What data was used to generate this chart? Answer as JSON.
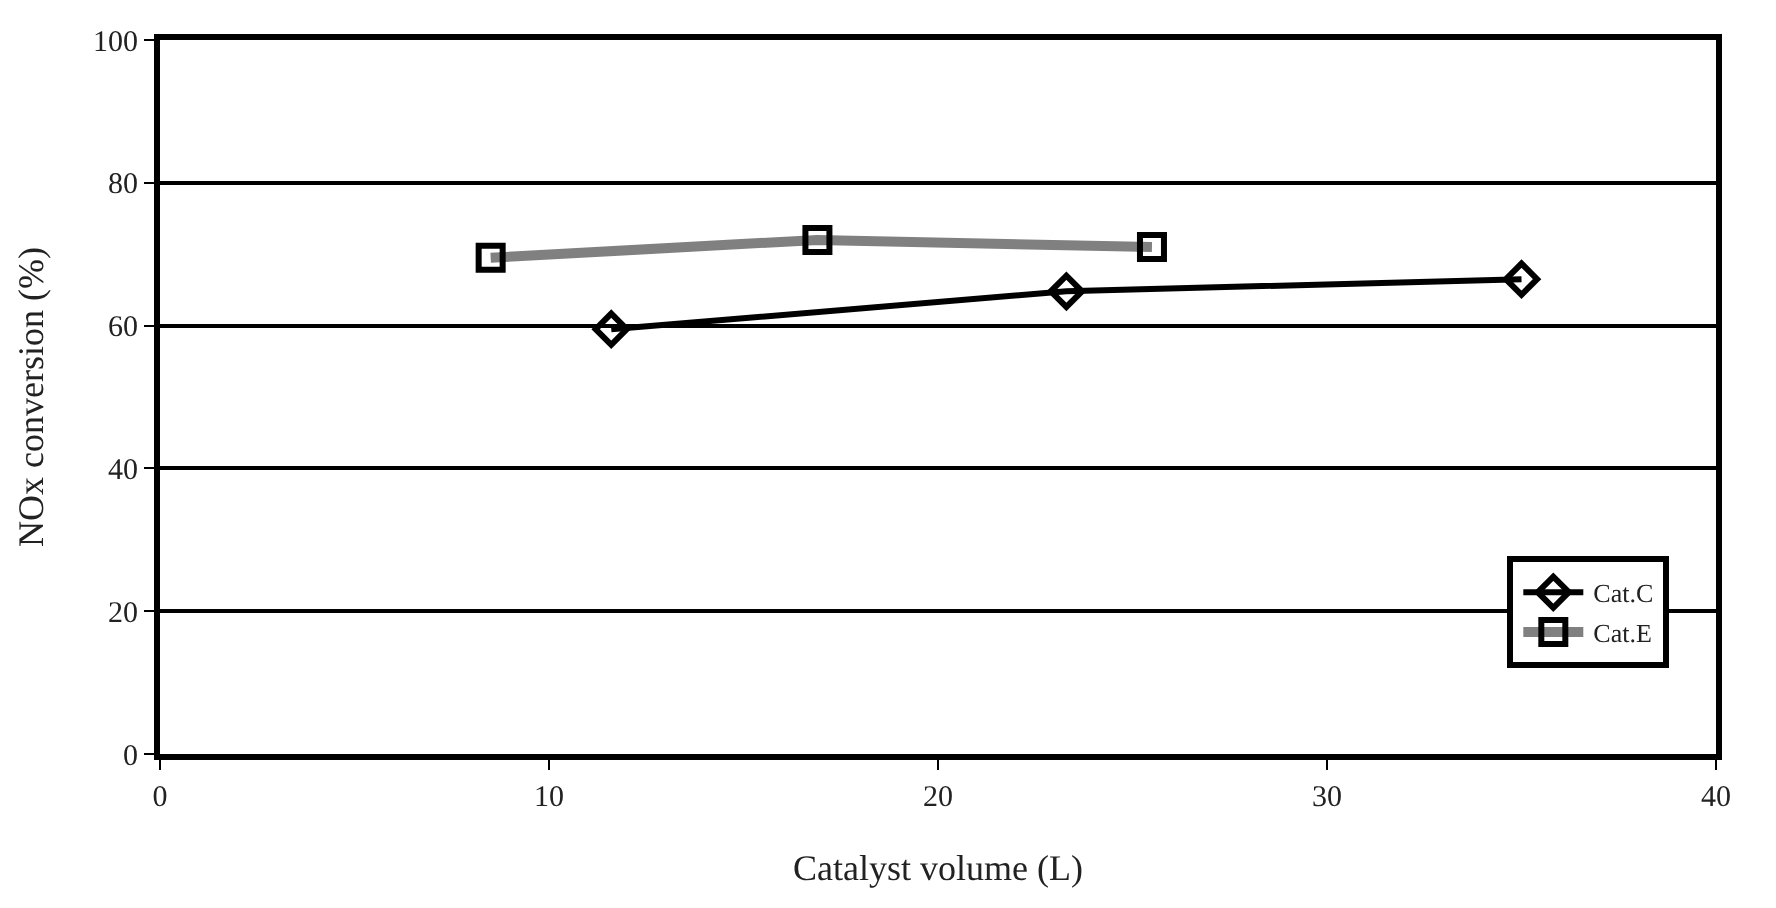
{
  "chart_data": {
    "type": "line",
    "xlabel": "Catalyst volume (L)",
    "ylabel": "NOx conversion (%)",
    "xlim": [
      0,
      40
    ],
    "xticks": [
      0,
      10,
      20,
      30,
      40
    ],
    "ylim": [
      0,
      100
    ],
    "yticks": [
      0,
      20,
      40,
      60,
      80,
      100
    ],
    "grid": "y",
    "legend": "bottom right",
    "series": [
      {
        "name": "Cat.C",
        "color": "#000000",
        "marker": "diamond",
        "x": [
          11.6,
          23.3,
          35.0
        ],
        "values": [
          59.5,
          64.8,
          66.5
        ]
      },
      {
        "name": "Cat.E",
        "color": "#808080",
        "marker": "square",
        "x": [
          8.5,
          16.9,
          25.5
        ],
        "values": [
          69.5,
          72,
          71
        ]
      }
    ]
  }
}
